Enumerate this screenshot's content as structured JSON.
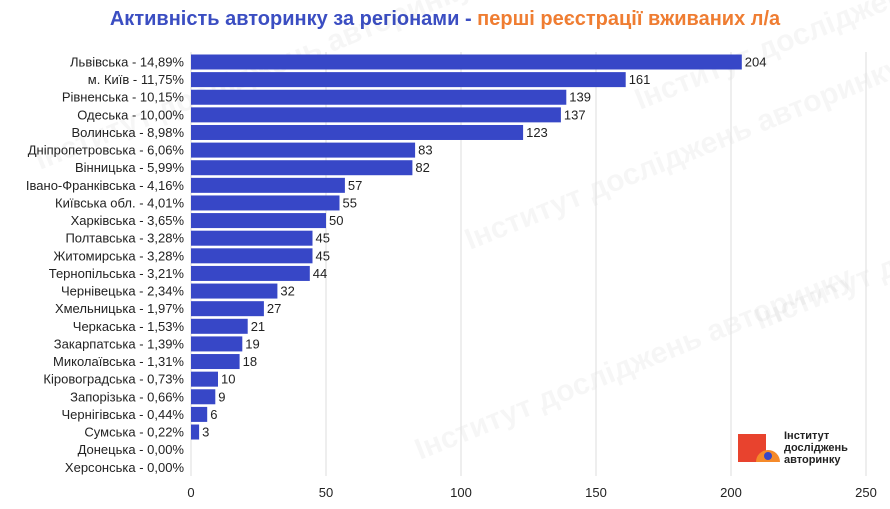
{
  "title": {
    "part1": "Активність авторинку за регіонами - ",
    "part2": "перші реєстрації вживаних л/а"
  },
  "colors": {
    "bar": "#3747c7",
    "title_main": "#3b4ec2",
    "title_accent": "#ef7d32",
    "grid": "#dddddd",
    "text": "#222222",
    "logo_red": "#e8432e",
    "logo_orange": "#f58a2a",
    "logo_blue": "#3747c7"
  },
  "logo": {
    "line1": "Інститут",
    "line2": "досліджень",
    "line3": "авторинку"
  },
  "watermark_text": "Інститут досліджень авторинку",
  "chart_data": {
    "type": "bar",
    "orientation": "horizontal",
    "categories": [
      "Львівська - 14,89%",
      "м. Київ - 11,75%",
      "Рівненська - 10,15%",
      "Одеська - 10,00%",
      "Волинська - 8,98%",
      "Дніпропетровська - 6,06%",
      "Вінницька - 5,99%",
      "Івано-Франківська - 4,16%",
      "Київська обл. - 4,01%",
      "Харківська - 3,65%",
      "Полтавська - 3,28%",
      "Житомирська - 3,28%",
      "Тернопільська - 3,21%",
      "Чернівецька - 2,34%",
      "Хмельницька - 1,97%",
      "Черкаська - 1,53%",
      "Закарпатська - 1,39%",
      "Миколаївська - 1,31%",
      "Кіровоградська - 0,73%",
      "Запорізька - 0,66%",
      "Чернігівська - 0,44%",
      "Сумська - 0,22%",
      "Донецька - 0,00%",
      "Херсонська - 0,00%"
    ],
    "values": [
      204,
      161,
      139,
      137,
      123,
      83,
      82,
      57,
      55,
      50,
      45,
      45,
      44,
      32,
      27,
      21,
      19,
      18,
      10,
      9,
      6,
      3,
      0,
      0
    ],
    "data_labels": [
      "204",
      "161",
      "139",
      "137",
      "123",
      "83",
      "82",
      "57",
      "55",
      "50",
      "45",
      "45",
      "44",
      "32",
      "27",
      "21",
      "19",
      "18",
      "10",
      "9",
      "6",
      "3",
      "",
      ""
    ],
    "xticks": [
      0,
      50,
      100,
      150,
      200,
      250
    ],
    "xlim": [
      0,
      250
    ],
    "grid": true,
    "legend": "none"
  }
}
